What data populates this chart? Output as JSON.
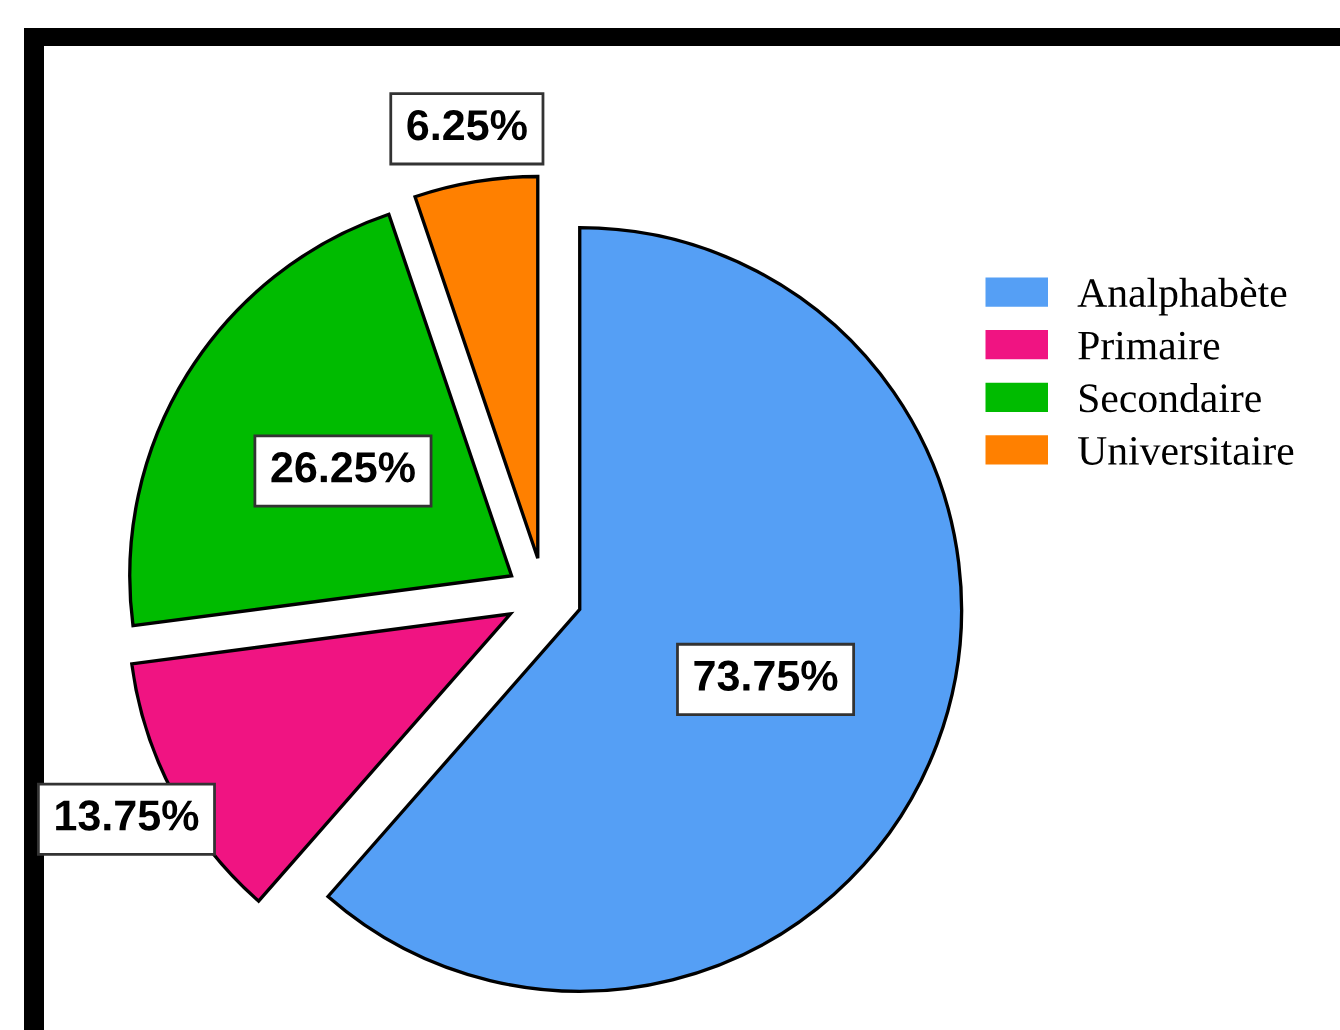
{
  "chart_data": {
    "type": "pie",
    "categories": [
      "Analphabète",
      "Primaire",
      "Secondaire",
      "Universitaire"
    ],
    "values": [
      73.75,
      13.75,
      26.25,
      6.25
    ],
    "colors": [
      "#559ff5",
      "#f01482",
      "#00bb00",
      "#ff8000"
    ],
    "value_labels": [
      "73.75%",
      "13.75%",
      "26.25%",
      "6.25%"
    ],
    "legend": "right"
  }
}
